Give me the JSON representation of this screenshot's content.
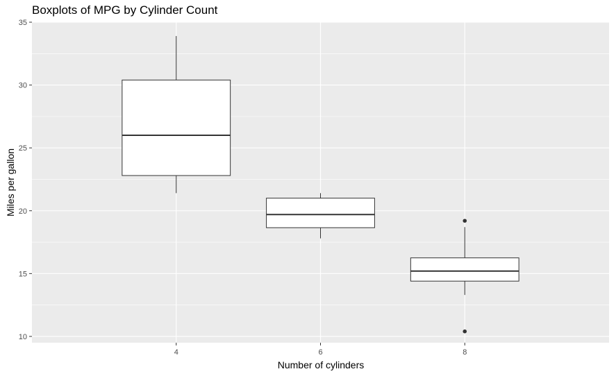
{
  "chart_data": {
    "type": "boxplot",
    "title": "Boxplots of MPG by Cylinder Count",
    "xlabel": "Number of cylinders",
    "ylabel": "Miles per gallon",
    "categories": [
      "4",
      "6",
      "8"
    ],
    "ylim": [
      9.5,
      35.0
    ],
    "yticks": [
      10,
      15,
      20,
      25,
      30,
      35
    ],
    "grid": true,
    "background": "#ebebeb",
    "grid_color": "#ffffff",
    "box_fill": "#ffffff",
    "box_stroke": "#333333",
    "boxes": [
      {
        "category": "4",
        "whisker_low": 21.4,
        "q1": 22.8,
        "median": 26.0,
        "q3": 30.4,
        "whisker_high": 33.9,
        "outliers": []
      },
      {
        "category": "6",
        "whisker_low": 17.8,
        "q1": 18.65,
        "median": 19.7,
        "q3": 21.0,
        "whisker_high": 21.4,
        "outliers": []
      },
      {
        "category": "8",
        "whisker_low": 13.3,
        "q1": 14.4,
        "median": 15.2,
        "q3": 16.25,
        "whisker_high": 18.7,
        "outliers": [
          10.4,
          19.2
        ]
      }
    ]
  }
}
